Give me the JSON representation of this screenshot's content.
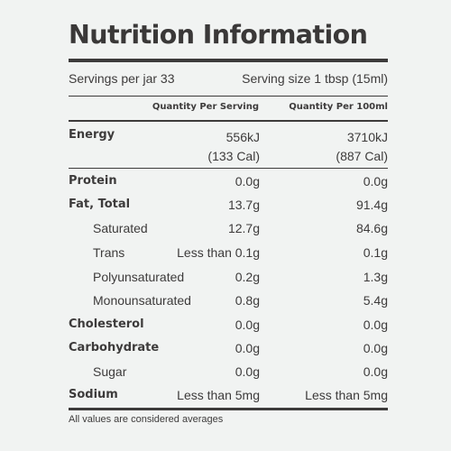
{
  "panel": {
    "title": "Nutrition Information",
    "servings_per": "Servings per jar 33",
    "serving_size": "Serving size 1 tbsp (15ml)",
    "col_serving": "Quantity Per Serving",
    "col_100ml": "Quantity Per 100ml",
    "energy": {
      "label": "Energy",
      "per_serving": "556kJ",
      "per_serving_cal": "(133 Cal)",
      "per_100ml": "3710kJ",
      "per_100ml_cal": "(887 Cal)"
    },
    "rows": [
      {
        "label": "Protein",
        "per_serving": "0.0g",
        "per_100ml": "0.0g"
      },
      {
        "label": "Fat, Total",
        "per_serving": "13.7g",
        "per_100ml": "91.4g"
      },
      {
        "label": "Saturated",
        "per_serving": "12.7g",
        "per_100ml": "84.6g"
      },
      {
        "label": "Trans",
        "per_serving": "Less than 0.1g",
        "per_100ml": "0.1g"
      },
      {
        "label": "Polyunsaturated",
        "per_serving": "0.2g",
        "per_100ml": "1.3g"
      },
      {
        "label": "Monounsaturated",
        "per_serving": "0.8g",
        "per_100ml": "5.4g"
      },
      {
        "label": "Cholesterol",
        "per_serving": "0.0g",
        "per_100ml": "0.0g"
      },
      {
        "label": "Carbohydrate",
        "per_serving": "0.0g",
        "per_100ml": "0.0g"
      },
      {
        "label": "Sugar",
        "per_serving": "0.0g",
        "per_100ml": "0.0g"
      },
      {
        "label": "Sodium",
        "per_serving": "Less than 5mg",
        "per_100ml": "Less than 5mg"
      }
    ],
    "footnote": "All values are considered averages"
  },
  "colors": {
    "background": "#f1f3f2",
    "text": "#3d3b3b"
  }
}
